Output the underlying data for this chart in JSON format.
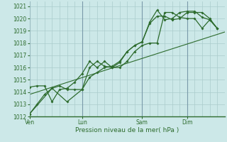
{
  "bg_color": "#cce8e8",
  "grid_color": "#aacccc",
  "line_color": "#2d6b2d",
  "xlabel": "Pression niveau de la mer( hPa )",
  "ylim": [
    1012,
    1021.4
  ],
  "yticks": [
    1012,
    1013,
    1014,
    1015,
    1016,
    1017,
    1018,
    1019,
    1020,
    1021
  ],
  "xtick_labels": [
    "Ven",
    "Lun",
    "Sam",
    "Dim"
  ],
  "xtick_pos": [
    0,
    7,
    15,
    21
  ],
  "vline_pos": [
    0,
    7,
    15,
    21
  ],
  "xlim": [
    0,
    26
  ],
  "series1_x": [
    0,
    1,
    2,
    3,
    4,
    5,
    6,
    7,
    8,
    9,
    10,
    11,
    12,
    13,
    14,
    15,
    16,
    17,
    18,
    19,
    20,
    21,
    22,
    23,
    24,
    25
  ],
  "series1_y": [
    1012.2,
    1013.0,
    1013.8,
    1014.3,
    1014.5,
    1014.2,
    1014.2,
    1014.2,
    1015.2,
    1015.6,
    1016.0,
    1016.1,
    1016.5,
    1017.3,
    1017.8,
    1018.1,
    1019.6,
    1020.2,
    1020.2,
    1019.9,
    1020.0,
    1020.5,
    1020.5,
    1020.5,
    1020.0,
    1019.2
  ],
  "series2_x": [
    0,
    3,
    5,
    7,
    8,
    9,
    10,
    11,
    12,
    13,
    14,
    15,
    16,
    17,
    18,
    19,
    20,
    21,
    22,
    23,
    24,
    25
  ],
  "series2_y": [
    1012.2,
    1014.3,
    1013.2,
    1014.2,
    1016.0,
    1016.5,
    1016.1,
    1016.0,
    1016.4,
    1017.3,
    1017.8,
    1018.1,
    1019.7,
    1020.7,
    1019.9,
    1020.0,
    1020.5,
    1020.6,
    1020.6,
    1020.1,
    1019.9,
    1019.2
  ],
  "series3_x": [
    0,
    26
  ],
  "series3_y": [
    1013.8,
    1018.9
  ],
  "series4_x": [
    0,
    1,
    2,
    3,
    4,
    5,
    6,
    7,
    8,
    9,
    10,
    11,
    12,
    13,
    14,
    15,
    16,
    17,
    18,
    19,
    20,
    21,
    22,
    23,
    24,
    25
  ],
  "series4_y": [
    1014.4,
    1014.5,
    1014.5,
    1013.2,
    1014.2,
    1014.3,
    1014.8,
    1015.5,
    1016.5,
    1016.0,
    1016.5,
    1016.0,
    1016.0,
    1016.5,
    1017.3,
    1017.8,
    1018.0,
    1018.0,
    1020.5,
    1020.5,
    1020.1,
    1020.0,
    1020.0,
    1019.2,
    1019.9,
    1019.2
  ]
}
